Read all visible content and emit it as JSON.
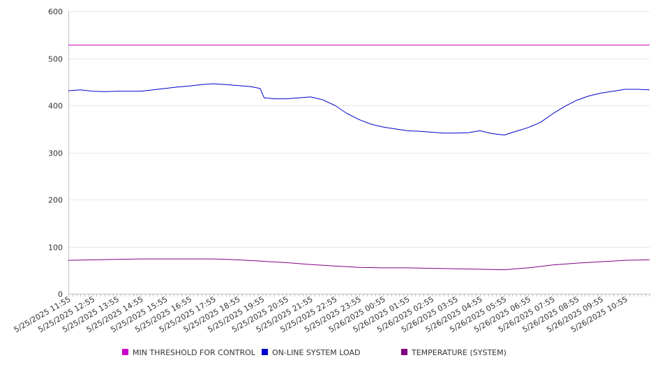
{
  "chart_data": {
    "type": "line",
    "title": "",
    "xlabel": "",
    "ylabel": "",
    "ylim": [
      0,
      600
    ],
    "y_ticks": [
      "0",
      "100",
      "200",
      "300",
      "400",
      "500",
      "600"
    ],
    "x_tick_labels": [
      "5/25/2025 11:55",
      "5/25/2025 12:55",
      "5/25/2025 13:55",
      "5/25/2025 14:55",
      "5/25/2025 15:55",
      "5/25/2025 16:55",
      "5/25/2025 17:55",
      "5/25/2025 18:55",
      "5/25/2025 19:55",
      "5/25/2025 20:55",
      "5/25/2025 21:55",
      "5/25/2025 22:55",
      "5/25/2025 23:55",
      "5/26/2025 00:55",
      "5/26/2025 01:55",
      "5/26/2025 02:55",
      "5/26/2025 03:55",
      "5/26/2025 04:55",
      "5/26/2025 05:55",
      "5/26/2025 06:55",
      "5/26/2025 07:55",
      "5/26/2025 08:55",
      "5/26/2025 09:55",
      "5/26/2025 10:55"
    ],
    "x_end": "5/26/2025 11:55",
    "grid": "horizontal",
    "legend_position": "bottom",
    "series": [
      {
        "name": "MIN THRESHOLD FOR CONTROL",
        "color": "#cc00cc",
        "points": [
          [
            "5/25/2025 11:55",
            528
          ],
          [
            "5/26/2025 11:55",
            528
          ]
        ]
      },
      {
        "name": "ON-LINE SYSTEM LOAD",
        "color": "#0000cc",
        "points": [
          [
            "5/25/2025 11:55",
            431
          ],
          [
            "5/25/2025 12:25",
            433
          ],
          [
            "5/25/2025 12:55",
            430
          ],
          [
            "5/25/2025 13:25",
            429
          ],
          [
            "5/25/2025 13:55",
            430
          ],
          [
            "5/25/2025 14:25",
            430
          ],
          [
            "5/25/2025 14:55",
            430
          ],
          [
            "5/25/2025 15:25",
            433
          ],
          [
            "5/25/2025 15:55",
            436
          ],
          [
            "5/25/2025 16:25",
            439
          ],
          [
            "5/25/2025 16:55",
            441
          ],
          [
            "5/25/2025 17:25",
            444
          ],
          [
            "5/25/2025 17:55",
            446
          ],
          [
            "5/25/2025 18:25",
            444
          ],
          [
            "5/25/2025 18:55",
            442
          ],
          [
            "5/25/2025 19:25",
            440
          ],
          [
            "5/25/2025 19:50",
            436
          ],
          [
            "5/25/2025 20:00",
            416
          ],
          [
            "5/25/2025 20:25",
            414
          ],
          [
            "5/25/2025 20:55",
            414
          ],
          [
            "5/25/2025 21:25",
            416
          ],
          [
            "5/25/2025 21:55",
            418
          ],
          [
            "5/25/2025 22:25",
            412
          ],
          [
            "5/25/2025 22:55",
            400
          ],
          [
            "5/25/2025 23:25",
            383
          ],
          [
            "5/25/2025 23:55",
            370
          ],
          [
            "5/26/2025 00:25",
            360
          ],
          [
            "5/26/2025 00:55",
            354
          ],
          [
            "5/26/2025 01:25",
            350
          ],
          [
            "5/26/2025 01:55",
            346
          ],
          [
            "5/26/2025 02:25",
            345
          ],
          [
            "5/26/2025 02:55",
            343
          ],
          [
            "5/26/2025 03:25",
            341
          ],
          [
            "5/26/2025 03:55",
            341
          ],
          [
            "5/26/2025 04:25",
            342
          ],
          [
            "5/26/2025 04:55",
            346
          ],
          [
            "5/26/2025 05:25",
            340
          ],
          [
            "5/26/2025 05:55",
            337
          ],
          [
            "5/26/2025 06:25",
            345
          ],
          [
            "5/26/2025 06:55",
            353
          ],
          [
            "5/26/2025 07:25",
            364
          ],
          [
            "5/26/2025 07:55",
            382
          ],
          [
            "5/26/2025 08:25",
            398
          ],
          [
            "5/26/2025 08:55",
            411
          ],
          [
            "5/26/2025 09:25",
            420
          ],
          [
            "5/26/2025 09:55",
            426
          ],
          [
            "5/26/2025 10:25",
            430
          ],
          [
            "5/26/2025 10:55",
            434
          ],
          [
            "5/26/2025 11:25",
            434
          ],
          [
            "5/26/2025 11:55",
            433
          ]
        ]
      },
      {
        "name": "TEMPERATURE (SYSTEM)",
        "color": "#800080",
        "points": [
          [
            "5/25/2025 11:55",
            71
          ],
          [
            "5/25/2025 12:55",
            72
          ],
          [
            "5/25/2025 13:55",
            73
          ],
          [
            "5/25/2025 14:55",
            74
          ],
          [
            "5/25/2025 15:55",
            74
          ],
          [
            "5/25/2025 16:55",
            74
          ],
          [
            "5/25/2025 17:55",
            74
          ],
          [
            "5/25/2025 18:55",
            72
          ],
          [
            "5/25/2025 19:55",
            69
          ],
          [
            "5/25/2025 20:55",
            66
          ],
          [
            "5/25/2025 21:55",
            62
          ],
          [
            "5/25/2025 22:55",
            59
          ],
          [
            "5/25/2025 23:55",
            56
          ],
          [
            "5/26/2025 00:55",
            55
          ],
          [
            "5/26/2025 01:55",
            55
          ],
          [
            "5/26/2025 02:55",
            54
          ],
          [
            "5/26/2025 03:55",
            53
          ],
          [
            "5/26/2025 04:55",
            52
          ],
          [
            "5/26/2025 05:55",
            51
          ],
          [
            "5/26/2025 06:55",
            55
          ],
          [
            "5/26/2025 07:55",
            61
          ],
          [
            "5/26/2025 08:55",
            65
          ],
          [
            "5/26/2025 09:55",
            68
          ],
          [
            "5/26/2025 10:55",
            71
          ],
          [
            "5/26/2025 11:55",
            72
          ]
        ]
      }
    ]
  }
}
